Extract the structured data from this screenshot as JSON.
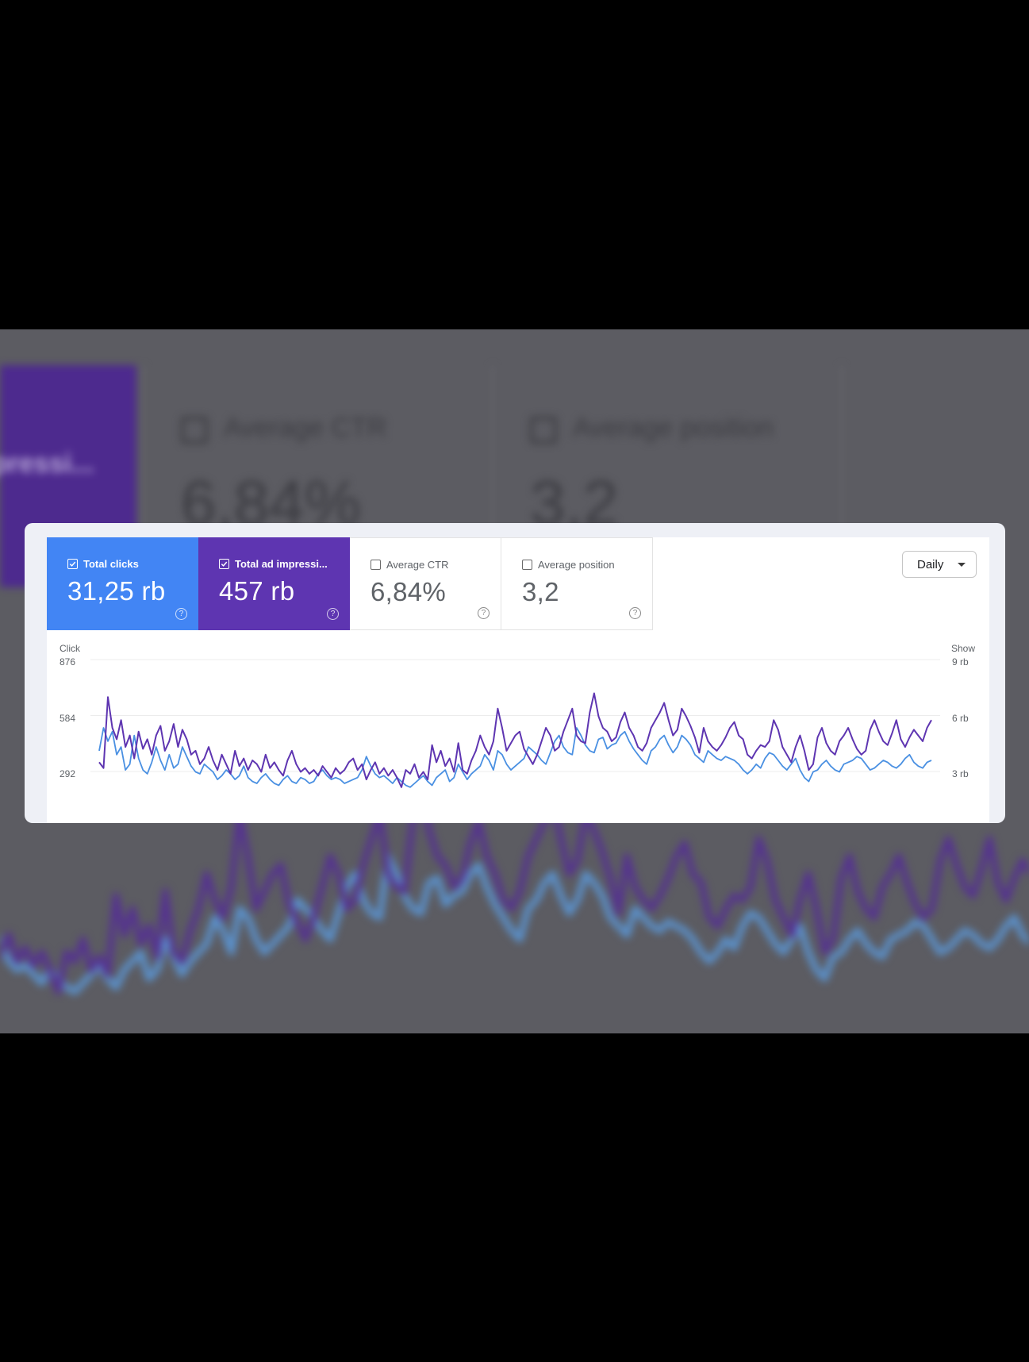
{
  "background": {
    "metric_partial": "pressi...",
    "metrics": [
      {
        "label": "Average CTR",
        "value": "6,84%"
      },
      {
        "label": "Average position",
        "value": "3,2"
      }
    ]
  },
  "card": {
    "metrics": [
      {
        "label": "Total clicks",
        "value": "31,25 rb",
        "checked": true,
        "color": "#4285f4"
      },
      {
        "label": "Total ad impressi...",
        "value": "457 rb",
        "checked": true,
        "color": "#5e35b1"
      },
      {
        "label": "Average CTR",
        "value": "6,84%",
        "checked": false
      },
      {
        "label": "Average position",
        "value": "3,2",
        "checked": false
      }
    ],
    "help_icon": "question-circle-icon",
    "dropdown": {
      "selected": "Daily",
      "icon": "caret-down-icon"
    }
  },
  "chart_data": {
    "type": "line",
    "left_axis": {
      "title": "Click",
      "ticks": [
        "876",
        "584",
        "292"
      ],
      "values": [
        876,
        584,
        292
      ]
    },
    "right_axis": {
      "title": "Show",
      "ticks": [
        "9 rb",
        "6 rb",
        "3 rb"
      ],
      "values": [
        9000,
        6000,
        3000
      ]
    },
    "grid": true,
    "series": [
      {
        "name": "Total clicks",
        "color": "#4a90e2",
        "axis": "left",
        "values": [
          400,
          520,
          450,
          500,
          380,
          420,
          300,
          330,
          480,
          360,
          300,
          280,
          340,
          420,
          350,
          300,
          380,
          310,
          330,
          420,
          370,
          320,
          290,
          280,
          330,
          310,
          290,
          250,
          270,
          300,
          280,
          250,
          270,
          320,
          260,
          240,
          230,
          260,
          280,
          250,
          230,
          220,
          250,
          270,
          240,
          230,
          260,
          250,
          230,
          240,
          280,
          300,
          270,
          250,
          260,
          250,
          230,
          240,
          250,
          260,
          300,
          370,
          320,
          280,
          260,
          270,
          250,
          230,
          260,
          240,
          220,
          210,
          230,
          250,
          270,
          240,
          220,
          260,
          280,
          300,
          240,
          260,
          330,
          290,
          250,
          280,
          300,
          320,
          380,
          350,
          300,
          400,
          380,
          330,
          300,
          320,
          340,
          360,
          420,
          400,
          380,
          350,
          330,
          390,
          450,
          480,
          420,
          390,
          380,
          520,
          480,
          430,
          400,
          390,
          460,
          470,
          410,
          430,
          440,
          480,
          500,
          450,
          410,
          380,
          350,
          330,
          400,
          420,
          460,
          480,
          430,
          390,
          420,
          480,
          460,
          430,
          380,
          360,
          340,
          400,
          380,
          360,
          350,
          370,
          360,
          350,
          330,
          300,
          280,
          300,
          330,
          310,
          360,
          390,
          380,
          350,
          320,
          300,
          330,
          360,
          300,
          260,
          240,
          290,
          300,
          330,
          350,
          320,
          300,
          290,
          330,
          340,
          350,
          370,
          360,
          330,
          300,
          310,
          330,
          350,
          340,
          320,
          310,
          330,
          360,
          380,
          340,
          320,
          310,
          340,
          350
        ],
        "values_sampled": true
      },
      {
        "name": "Total ad impressions",
        "color": "#5e35b1",
        "axis": "left",
        "values": [
          340,
          310,
          680,
          520,
          460,
          560,
          420,
          480,
          360,
          500,
          410,
          460,
          380,
          480,
          530,
          400,
          450,
          540,
          420,
          510,
          460,
          380,
          400,
          330,
          360,
          420,
          350,
          300,
          380,
          330,
          280,
          400,
          320,
          360,
          300,
          350,
          330,
          290,
          380,
          310,
          340,
          300,
          270,
          350,
          400,
          330,
          290,
          310,
          280,
          300,
          270,
          320,
          290,
          260,
          310,
          280,
          300,
          340,
          360,
          300,
          330,
          250,
          300,
          340,
          280,
          310,
          270,
          300,
          260,
          210,
          300,
          280,
          330,
          260,
          290,
          250,
          430,
          340,
          400,
          320,
          360,
          290,
          440,
          300,
          280,
          350,
          400,
          480,
          420,
          380,
          450,
          620,
          520,
          400,
          440,
          480,
          500,
          410,
          370,
          330,
          380,
          450,
          520,
          480,
          400,
          420,
          500,
          560,
          620,
          480,
          450,
          440,
          600,
          700,
          580,
          520,
          500,
          450,
          470,
          550,
          600,
          520,
          480,
          420,
          400,
          440,
          520,
          560,
          600,
          650,
          560,
          480,
          510,
          620,
          580,
          530,
          470,
          390,
          520,
          450,
          420,
          400,
          430,
          470,
          520,
          550,
          480,
          460,
          380,
          360,
          400,
          430,
          420,
          450,
          560,
          510,
          420,
          380,
          340,
          420,
          480,
          400,
          300,
          330,
          470,
          520,
          440,
          400,
          380,
          450,
          480,
          520,
          460,
          410,
          380,
          400,
          510,
          560,
          500,
          450,
          430,
          490,
          560,
          460,
          420,
          470,
          510,
          480,
          450,
          520,
          560
        ],
        "values_sampled": true
      }
    ]
  }
}
